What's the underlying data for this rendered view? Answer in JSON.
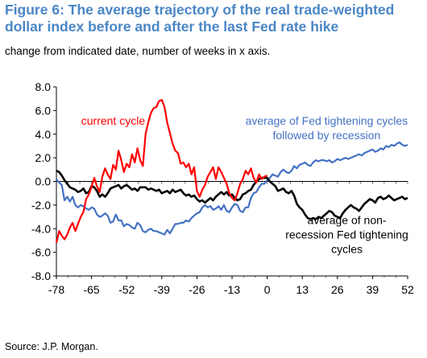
{
  "header": {
    "title": "Figure 6: The average trajectory of the real trade-weighted dollar index before and after the last Fed rate hike",
    "subtitle": "change from indicated date, number of weeks in x axis."
  },
  "footer": {
    "source": "Source: J.P. Morgan."
  },
  "chart_data": {
    "type": "line",
    "title": "Figure 6: The average trajectory of the real trade-weighted dollar index before and after the last Fed rate hike",
    "subtitle": "change from indicated date, number of weeks in x axis.",
    "xlabel": "",
    "ylabel": "",
    "xlim": [
      -78,
      52
    ],
    "ylim": [
      -8,
      8
    ],
    "x_ticks": [
      -78,
      -65,
      -52,
      -39,
      -26,
      -13,
      0,
      13,
      26,
      39,
      52
    ],
    "y_ticks": [
      "8.0",
      "6.0",
      "4.0",
      "2.0",
      "0.0",
      "-2.0",
      "-4.0",
      "-6.0",
      "-8.0"
    ],
    "grid": false,
    "legend": "none",
    "series": [
      {
        "name": "current cycle",
        "color": "#ff0000",
        "x": [
          -78,
          -77,
          -76,
          -75,
          -74,
          -73,
          -72,
          -71,
          -70,
          -69,
          -68,
          -67,
          -66,
          -65,
          -64,
          -63,
          -62,
          -61,
          -60,
          -59,
          -58,
          -57,
          -56,
          -55,
          -54,
          -53,
          -52,
          -51,
          -50,
          -49,
          -48,
          -47,
          -46,
          -45,
          -44,
          -43,
          -42,
          -41,
          -40,
          -39,
          -38,
          -37,
          -36,
          -35,
          -34,
          -33,
          -32,
          -31,
          -30,
          -29,
          -28,
          -27,
          -26,
          -25,
          -24,
          -23,
          -22,
          -21,
          -20,
          -19,
          -18,
          -17,
          -16,
          -15,
          -14,
          -13,
          -12,
          -11,
          -10,
          -9,
          -8,
          -7,
          -6,
          -5,
          -4,
          -3,
          -2,
          -1,
          0
        ],
        "y": [
          -5.2,
          -4.2,
          -4.6,
          -4.9,
          -4.5,
          -3.9,
          -3.5,
          -4.2,
          -3.6,
          -3.0,
          -2.6,
          -1.5,
          -1.1,
          -0.5,
          0.3,
          -0.4,
          -0.9,
          0.4,
          1.1,
          0.6,
          0.2,
          1.4,
          1.0,
          2.6,
          1.8,
          0.8,
          1.5,
          1.2,
          2.3,
          1.6,
          2.8,
          1.8,
          1.3,
          4.0,
          5.0,
          5.8,
          6.2,
          6.3,
          6.8,
          6.9,
          6.3,
          5.0,
          4.1,
          3.2,
          2.6,
          2.4,
          1.5,
          1.6,
          1.2,
          1.5,
          0.6,
          1.2,
          -0.8,
          -1.3,
          -0.7,
          -0.3,
          0.4,
          0.8,
          1.2,
          0.2,
          1.2,
          0.8,
          0.3,
          -0.2,
          -1.0,
          -1.4,
          -1.6,
          -1.0,
          -0.2,
          0.2,
          0.9,
          0.6,
          1.1,
          0.3,
          -0.1,
          0.6,
          0.2,
          0.4,
          0.5
        ]
      },
      {
        "name": "average of Fed tightening cycles followed by recession",
        "color": "#4472c4",
        "x": [
          -78,
          -77,
          -76,
          -75,
          -74,
          -73,
          -72,
          -71,
          -70,
          -69,
          -68,
          -67,
          -66,
          -65,
          -64,
          -63,
          -62,
          -61,
          -60,
          -59,
          -58,
          -57,
          -56,
          -55,
          -54,
          -53,
          -52,
          -51,
          -50,
          -49,
          -48,
          -47,
          -46,
          -45,
          -44,
          -43,
          -42,
          -41,
          -40,
          -39,
          -38,
          -37,
          -36,
          -35,
          -34,
          -33,
          -32,
          -31,
          -30,
          -29,
          -28,
          -27,
          -26,
          -25,
          -24,
          -23,
          -22,
          -21,
          -20,
          -19,
          -18,
          -17,
          -16,
          -15,
          -14,
          -13,
          -12,
          -11,
          -10,
          -9,
          -8,
          -7,
          -6,
          -5,
          -4,
          -3,
          -2,
          -1,
          0,
          1,
          2,
          3,
          4,
          5,
          6,
          7,
          8,
          9,
          10,
          11,
          12,
          13,
          14,
          15,
          16,
          17,
          18,
          19,
          20,
          21,
          22,
          23,
          24,
          25,
          26,
          27,
          28,
          29,
          30,
          31,
          32,
          33,
          34,
          35,
          36,
          37,
          38,
          39,
          40,
          41,
          42,
          43,
          44,
          45,
          46,
          47,
          48,
          49,
          50,
          51,
          52
        ],
        "y": [
          0.2,
          -0.1,
          -0.3,
          -1.6,
          -1.3,
          -1.7,
          -1.3,
          -2.0,
          -2.2,
          -2.0,
          -2.1,
          -2.3,
          -2.4,
          -2.2,
          -2.3,
          -2.8,
          -3.0,
          -2.9,
          -2.7,
          -2.9,
          -3.5,
          -3.4,
          -2.8,
          -3.3,
          -3.3,
          -3.8,
          -3.6,
          -3.7,
          -3.9,
          -4.0,
          -3.5,
          -3.7,
          -4.2,
          -4.3,
          -4.1,
          -4.0,
          -4.2,
          -4.2,
          -4.3,
          -4.4,
          -4.5,
          -4.1,
          -4.4,
          -4.0,
          -3.6,
          -3.6,
          -3.5,
          -3.5,
          -3.3,
          -3.4,
          -3.1,
          -2.9,
          -2.7,
          -2.6,
          -2.2,
          -2.0,
          -2.2,
          -2.1,
          -2.4,
          -2.3,
          -2.1,
          -2.4,
          -2.0,
          -2.5,
          -2.6,
          -2.2,
          -1.9,
          -2.0,
          -2.5,
          -2.6,
          -2.2,
          -2.2,
          -1.4,
          -1.0,
          -0.9,
          -0.5,
          -0.2,
          -0.2,
          0.1,
          0.3,
          0.6,
          0.5,
          0.4,
          0.8,
          1.0,
          0.8,
          0.7,
          0.9,
          1.3,
          1.1,
          1.4,
          1.5,
          1.6,
          1.4,
          1.3,
          1.6,
          1.8,
          1.7,
          1.8,
          1.8,
          1.7,
          1.8,
          1.6,
          1.7,
          1.9,
          1.8,
          1.9,
          2.0,
          1.9,
          2.0,
          2.1,
          2.2,
          2.3,
          2.2,
          2.4,
          2.5,
          2.6,
          2.7,
          2.5,
          2.6,
          2.8,
          2.7,
          3.0,
          2.9,
          3.1,
          3.0,
          3.2,
          3.3,
          3.1,
          3.0,
          3.1
        ]
      },
      {
        "name": "average of non-recession Fed tightening cycles",
        "color": "#000000",
        "x": [
          -78,
          -77,
          -76,
          -75,
          -74,
          -73,
          -72,
          -71,
          -70,
          -69,
          -68,
          -67,
          -66,
          -65,
          -64,
          -63,
          -62,
          -61,
          -60,
          -59,
          -58,
          -57,
          -56,
          -55,
          -54,
          -53,
          -52,
          -51,
          -50,
          -49,
          -48,
          -47,
          -46,
          -45,
          -44,
          -43,
          -42,
          -41,
          -40,
          -39,
          -38,
          -37,
          -36,
          -35,
          -34,
          -33,
          -32,
          -31,
          -30,
          -29,
          -28,
          -27,
          -26,
          -25,
          -24,
          -23,
          -22,
          -21,
          -20,
          -19,
          -18,
          -17,
          -16,
          -15,
          -14,
          -13,
          -12,
          -11,
          -10,
          -9,
          -8,
          -7,
          -6,
          -5,
          -4,
          -3,
          -2,
          -1,
          0,
          1,
          2,
          3,
          4,
          5,
          6,
          7,
          8,
          9,
          10,
          11,
          12,
          13,
          14,
          15,
          16,
          17,
          18,
          19,
          20,
          21,
          22,
          23,
          24,
          25,
          26,
          27,
          28,
          29,
          30,
          31,
          32,
          33,
          34,
          35,
          36,
          37,
          38,
          39,
          40,
          41,
          42,
          43,
          44,
          45,
          46,
          47,
          48,
          49,
          50,
          51,
          52
        ],
        "y": [
          0.9,
          0.8,
          0.5,
          0.1,
          -0.2,
          -0.5,
          -0.6,
          -0.7,
          -0.9,
          -0.8,
          -0.6,
          -1.0,
          -0.9,
          -0.4,
          -0.5,
          -0.8,
          -1.3,
          -1.1,
          -1.3,
          -1.0,
          -0.6,
          -0.5,
          -0.4,
          -0.3,
          -0.6,
          -0.4,
          -0.3,
          -0.5,
          -0.7,
          -0.6,
          -0.8,
          -0.5,
          -0.5,
          -0.5,
          -0.7,
          -0.6,
          -0.7,
          -0.8,
          -0.7,
          -1.0,
          -0.9,
          -0.8,
          -1.0,
          -0.7,
          -0.9,
          -0.8,
          -0.7,
          -1.0,
          -1.2,
          -1.1,
          -1.3,
          -1.2,
          -1.5,
          -1.7,
          -1.6,
          -1.8,
          -1.6,
          -1.4,
          -1.6,
          -1.3,
          -1.1,
          -0.9,
          -1.1,
          -0.9,
          -1.2,
          -1.1,
          -1.4,
          -1.6,
          -1.5,
          -1.1,
          -1.0,
          -0.8,
          -0.7,
          -0.3,
          0.0,
          0.2,
          0.3,
          0.3,
          0.3,
          0.0,
          -0.2,
          -0.4,
          -0.8,
          -0.7,
          -0.6,
          -0.9,
          -1.0,
          -0.8,
          -1.2,
          -1.9,
          -2.2,
          -2.4,
          -2.8,
          -3.1,
          -3.2,
          -3.1,
          -3.2,
          -3.0,
          -3.1,
          -2.9,
          -2.7,
          -2.5,
          -2.6,
          -2.9,
          -3.0,
          -3.1,
          -2.7,
          -2.4,
          -2.2,
          -2.0,
          -2.2,
          -2.3,
          -2.5,
          -2.2,
          -1.9,
          -1.7,
          -1.5,
          -1.6,
          -1.8,
          -1.4,
          -1.3,
          -1.5,
          -1.4,
          -1.2,
          -1.4,
          -1.6,
          -1.5,
          -1.4,
          -1.3,
          -1.5,
          -1.4
        ]
      }
    ],
    "annotations": [
      {
        "lines": [
          "current cycle"
        ],
        "color": "#ff0000"
      },
      {
        "lines": [
          "average of Fed tightening cycles",
          "followed by recession"
        ],
        "color": "#4472c4"
      },
      {
        "lines": [
          "average of non-",
          "recession Fed tightening",
          "cycles"
        ],
        "color": "#000000"
      }
    ]
  }
}
